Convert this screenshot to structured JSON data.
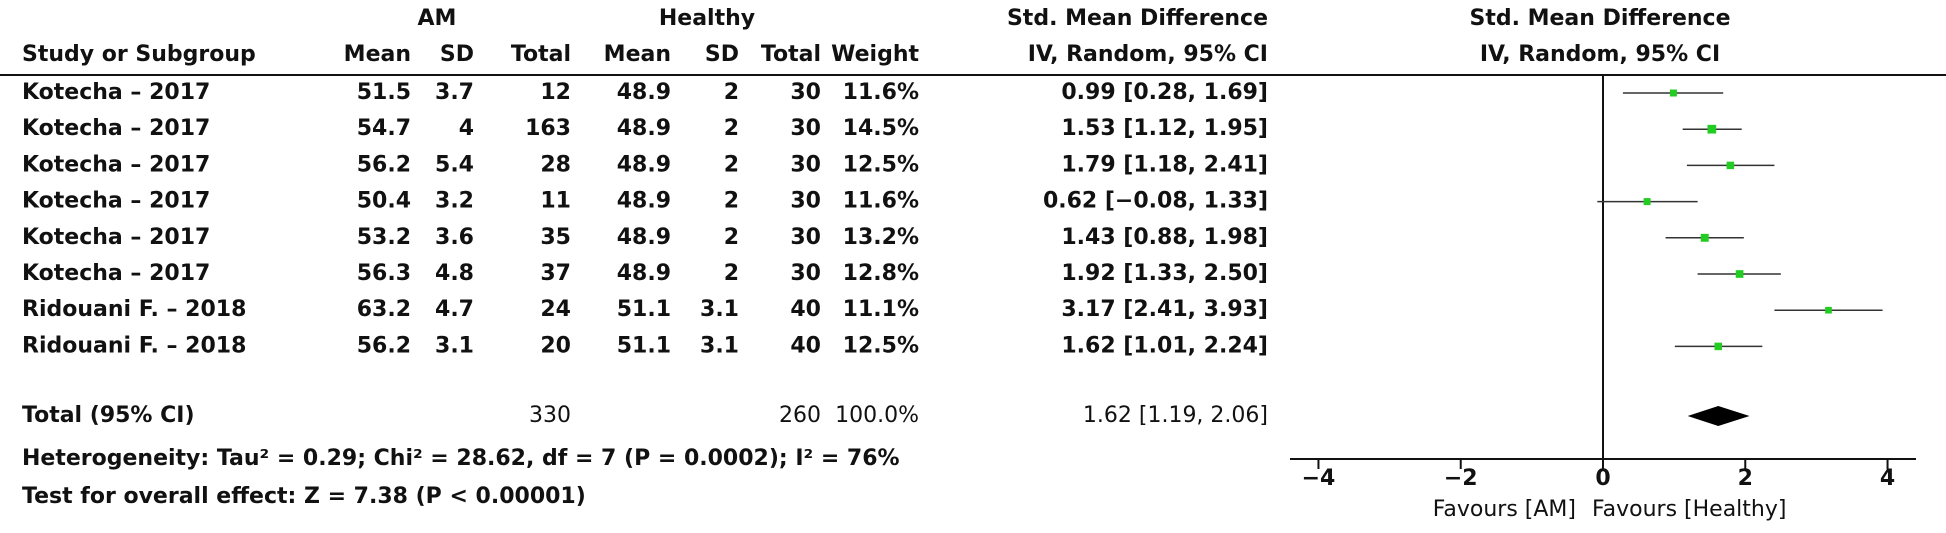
{
  "header": {
    "group1": "AM",
    "group2": "Healthy",
    "effect_title": "Std. Mean Difference",
    "columns": [
      "Study or Subgroup",
      "Mean",
      "SD",
      "Total",
      "Mean",
      "SD",
      "Total",
      "Weight",
      "IV, Random, 95% CI"
    ]
  },
  "rows": [
    [
      "Kotecha – 2017",
      "51.5",
      "3.7",
      "12",
      "48.9",
      "2",
      "30",
      "11.6%",
      "0.99 [0.28, 1.69]"
    ],
    [
      "Kotecha – 2017",
      "54.7",
      "4",
      "163",
      "48.9",
      "2",
      "30",
      "14.5%",
      "1.53 [1.12, 1.95]"
    ],
    [
      "Kotecha – 2017",
      "56.2",
      "5.4",
      "28",
      "48.9",
      "2",
      "30",
      "12.5%",
      "1.79 [1.18, 2.41]"
    ],
    [
      "Kotecha – 2017",
      "50.4",
      "3.2",
      "11",
      "48.9",
      "2",
      "30",
      "11.6%",
      "0.62 [−0.08, 1.33]"
    ],
    [
      "Kotecha – 2017",
      "53.2",
      "3.6",
      "35",
      "48.9",
      "2",
      "30",
      "13.2%",
      "1.43 [0.88, 1.98]"
    ],
    [
      "Kotecha – 2017",
      "56.3",
      "4.8",
      "37",
      "48.9",
      "2",
      "30",
      "12.8%",
      "1.92 [1.33, 2.50]"
    ],
    [
      "Ridouani F. – 2018",
      "63.2",
      "4.7",
      "24",
      "51.1",
      "3.1",
      "40",
      "11.1%",
      "3.17 [2.41, 3.93]"
    ],
    [
      "Ridouani F. – 2018",
      "56.2",
      "3.1",
      "20",
      "51.1",
      "3.1",
      "40",
      "12.5%",
      "1.62 [1.01, 2.24]"
    ]
  ],
  "total": {
    "label": "Total (95% CI)",
    "total1": "330",
    "total2": "260",
    "weight": "100.0%",
    "ci": "1.62 [1.19, 2.06]"
  },
  "heterogeneity": "Heterogeneity: Tau² = 0.29; Chi² = 28.62, df = 7 (P = 0.0002); I² = 76%",
  "overall_test": "Test for overall effect: Z = 7.38 (P < 0.00001)",
  "chart_data": {
    "type": "forest",
    "title": "Std. Mean Difference",
    "subtitle": "IV, Random, 95% CI",
    "estimate": [
      0.99,
      1.53,
      1.79,
      0.62,
      1.43,
      1.92,
      3.17,
      1.62
    ],
    "lower": [
      0.28,
      1.12,
      1.18,
      -0.08,
      0.88,
      1.33,
      2.41,
      1.01
    ],
    "upper": [
      1.69,
      1.95,
      2.41,
      1.33,
      1.98,
      2.5,
      3.93,
      2.24
    ],
    "weight": [
      11.6,
      14.5,
      12.5,
      11.6,
      13.2,
      12.8,
      11.1,
      12.5
    ],
    "pooled": {
      "estimate": 1.62,
      "lower": 1.19,
      "upper": 2.06
    },
    "xlim": [
      -4.4,
      4.4
    ],
    "xticks": [
      {
        "value": -4,
        "label": "−4"
      },
      {
        "value": -2,
        "label": "−2"
      },
      0,
      2,
      4
    ],
    "favours_left": "Favours [AM]",
    "favours_right": "Favours [Healthy]",
    "color": "#22cc22"
  }
}
